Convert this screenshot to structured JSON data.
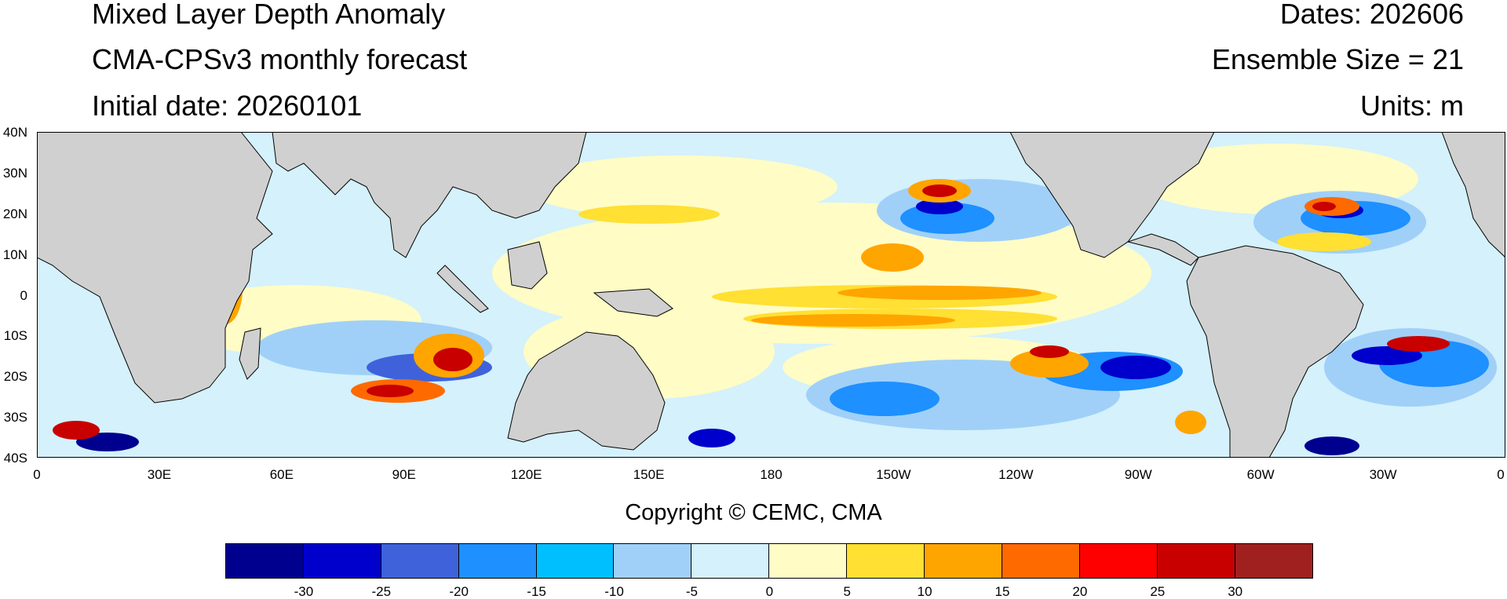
{
  "header": {
    "title": "Mixed Layer Depth Anomaly",
    "subtitle": "CMA-CPSv3 monthly forecast",
    "initial_date": "Initial date: 20260101",
    "dates": "Dates: 202606",
    "ensemble": "Ensemble Size = 21",
    "units": "Units: m"
  },
  "map": {
    "lat_labels": [
      "40N",
      "30N",
      "20N",
      "10N",
      "0",
      "10S",
      "20S",
      "30S",
      "40S"
    ],
    "lon_labels": [
      "0",
      "30E",
      "60E",
      "90E",
      "120E",
      "150E",
      "180",
      "150W",
      "120W",
      "90W",
      "60W",
      "30W",
      "0"
    ],
    "lat_range": [
      -40,
      40
    ],
    "lon_range": [
      0,
      360
    ],
    "land_color": "#d0d0d0"
  },
  "copyright": "Copyright © CEMC, CMA",
  "colorbar": {
    "labels": [
      "-30",
      "-25",
      "-20",
      "-15",
      "-10",
      "-5",
      "0",
      "5",
      "10",
      "15",
      "20",
      "25",
      "30"
    ],
    "colors": [
      "#00008f",
      "#0000cd",
      "#3f62db",
      "#1e90ff",
      "#00bfff",
      "#a0d0f8",
      "#d4f1fc",
      "#fffcc5",
      "#ffe033",
      "#ffa500",
      "#ff6a00",
      "#ff0000",
      "#c80000",
      "#a02020"
    ]
  }
}
